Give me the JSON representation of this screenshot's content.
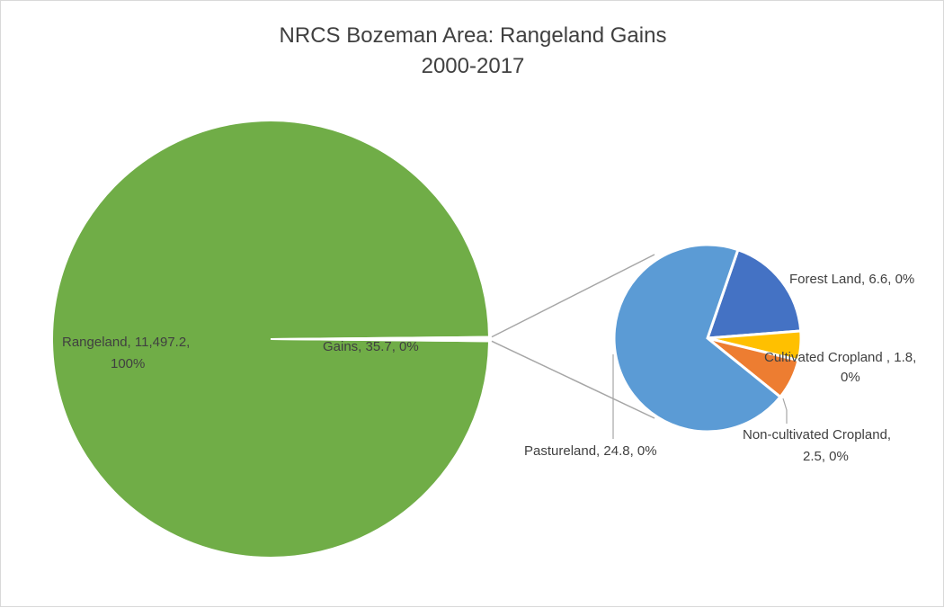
{
  "chart_data": {
    "type": "pie",
    "subtype": "pie-of-pie",
    "title_lines": [
      "NRCS Bozeman Area: Rangeland Gains",
      "2000-2017"
    ],
    "main_pie": {
      "slices": [
        {
          "name": "Rangeland",
          "value": 11497.2,
          "value_label": "11,497.2",
          "percent_label": "100%",
          "color": "#70ad47"
        },
        {
          "name": "Gains",
          "value": 35.7,
          "value_label": "35.7",
          "percent_label": "0%",
          "color": "#ffffff"
        }
      ]
    },
    "secondary_pie": {
      "source_slice": "Gains",
      "slices": [
        {
          "name": "Forest Land",
          "value": 6.6,
          "value_label": "6.6",
          "percent_label": "0%",
          "color": "#4472c4"
        },
        {
          "name": "Cultivated Cropland ",
          "value": 1.8,
          "value_label": "1.8",
          "percent_label": "0%",
          "color": "#ffc000"
        },
        {
          "name": "Non-cultivated Cropland",
          "value": 2.5,
          "value_label": "2.5",
          "percent_label": "0%",
          "color": "#ed7d31"
        },
        {
          "name": "Pastureland",
          "value": 24.8,
          "value_label": "24.8",
          "percent_label": "0%",
          "color": "#5b9bd5"
        }
      ]
    },
    "labels": {
      "rangeland": [
        "Rangeland, 11,497.2,",
        "100%"
      ],
      "gains": [
        "Gains, 35.7, 0%"
      ],
      "forest": [
        "Forest Land, 6.6, 0%"
      ],
      "cultivated": [
        "Cultivated Cropland , 1.8,",
        "0%"
      ],
      "noncultivated": [
        "Non-cultivated Cropland,",
        "2.5, 0%"
      ],
      "pasture": [
        "Pastureland, 24.8, 0%"
      ]
    },
    "legend": "none"
  }
}
